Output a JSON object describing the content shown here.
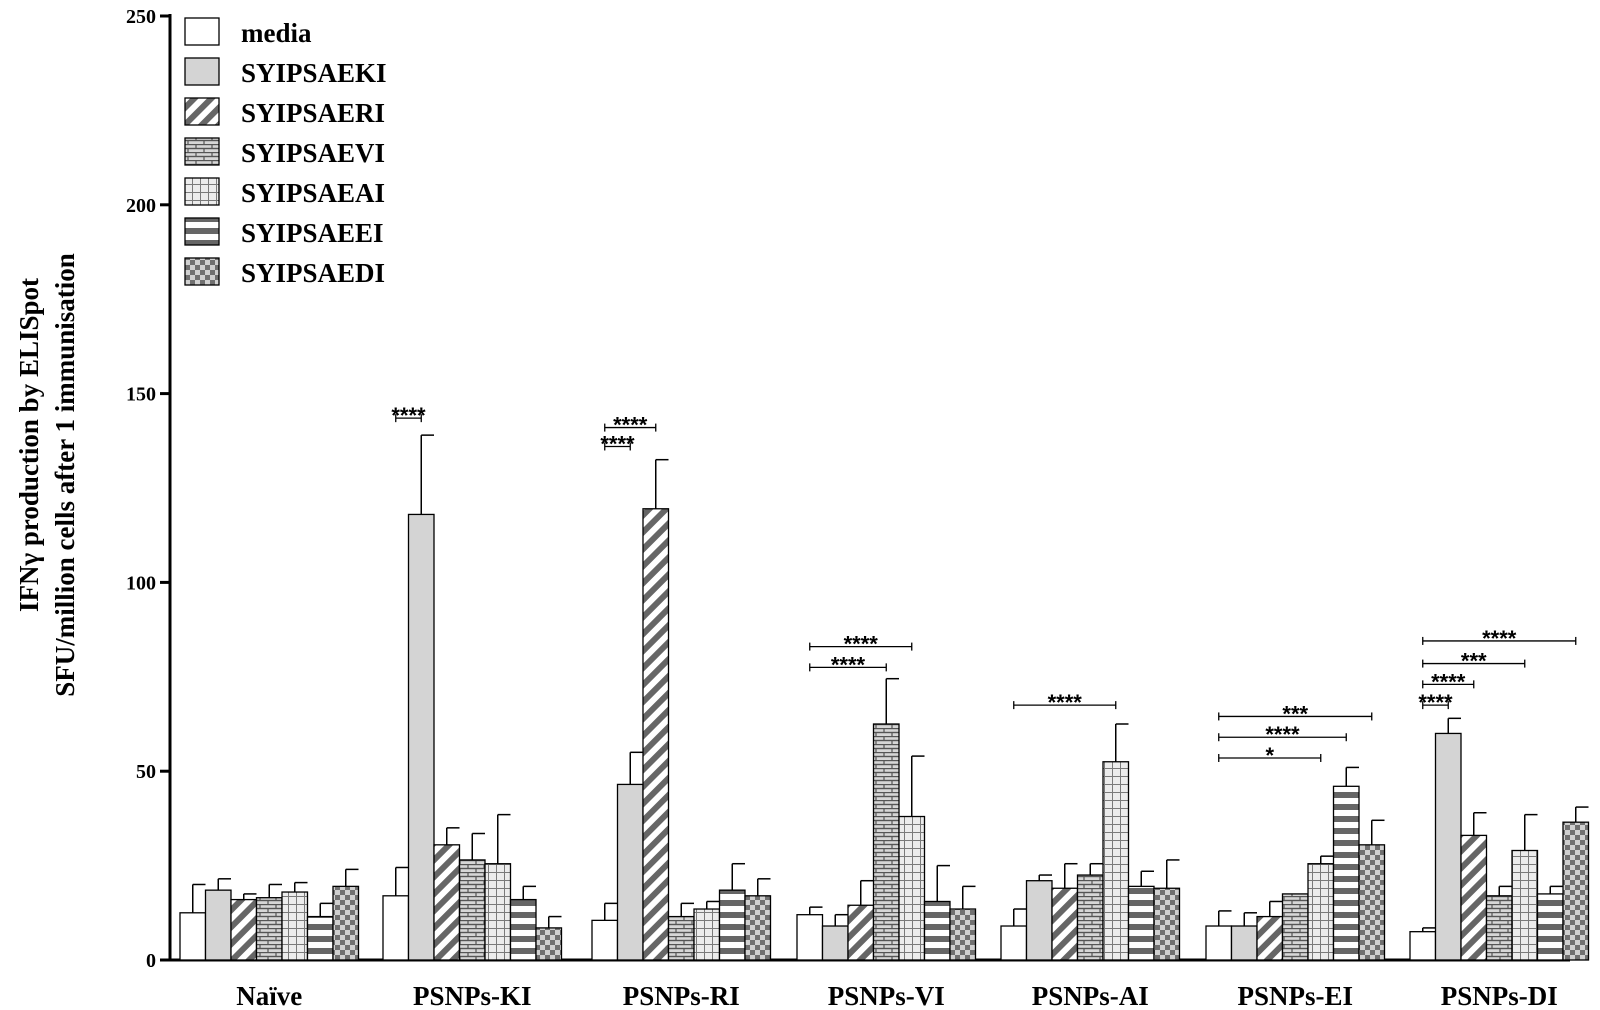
{
  "chart_data": {
    "type": "bar",
    "ylabel_line1": "IFNγ production by ELISpot",
    "ylabel_line2": "SFU/million cells after 1 immunisation",
    "ylim": [
      0,
      250
    ],
    "yticks": [
      "0",
      "50",
      "100",
      "150",
      "200",
      "250"
    ],
    "categories": [
      "Naïve",
      "PSNPs-KI",
      "PSNPs-RI",
      "PSNPs-VI",
      "PSNPs-AI",
      "PSNPs-EI",
      "PSNPs-DI"
    ],
    "legend_position": "top-left",
    "series": [
      {
        "name": "media",
        "pattern": "white",
        "values": [
          12.5,
          17,
          10.5,
          12,
          9,
          9,
          7.5
        ],
        "errors": [
          7.5,
          7.5,
          4.5,
          2,
          4.5,
          4,
          1
        ]
      },
      {
        "name": "SYIPSAEKI",
        "pattern": "gray",
        "values": [
          18.5,
          118,
          46.5,
          9,
          21,
          9,
          60
        ],
        "errors": [
          3,
          21,
          8.5,
          3,
          1.5,
          3.5,
          4
        ]
      },
      {
        "name": "SYIPSAERI",
        "pattern": "diag",
        "values": [
          16,
          30.5,
          119.5,
          14.5,
          19,
          11.5,
          33
        ],
        "errors": [
          1.5,
          4.5,
          13,
          6.5,
          6.5,
          4,
          6
        ]
      },
      {
        "name": "SYIPSAEVI",
        "pattern": "brick",
        "values": [
          16.5,
          26.5,
          11.5,
          62.5,
          22.5,
          17.5,
          17
        ],
        "errors": [
          3.5,
          7,
          3.5,
          12,
          3,
          0,
          2.5
        ]
      },
      {
        "name": "SYIPSAEAI",
        "pattern": "grid",
        "values": [
          18,
          25.5,
          13.5,
          38,
          52.5,
          25.5,
          29
        ],
        "errors": [
          2.5,
          13,
          2,
          16,
          10,
          2,
          9.5
        ]
      },
      {
        "name": "SYIPSAEEI",
        "pattern": "hstripe",
        "values": [
          11.5,
          16,
          18.5,
          15.5,
          19.5,
          46,
          17.5
        ],
        "errors": [
          3.5,
          3.5,
          7,
          9.5,
          4,
          5,
          2
        ]
      },
      {
        "name": "SYIPSAEDI",
        "pattern": "check",
        "values": [
          19.5,
          8.5,
          17,
          13.5,
          19,
          30.5,
          36.5
        ],
        "errors": [
          4.5,
          3,
          4.5,
          6,
          7.5,
          6.5,
          4
        ]
      }
    ],
    "significance": [
      {
        "group": 1,
        "from": 0,
        "to": 1,
        "level": 143.5,
        "label": "****"
      },
      {
        "group": 2,
        "from": 0,
        "to": 1,
        "level": 136,
        "label": "****"
      },
      {
        "group": 2,
        "from": 0,
        "to": 2,
        "level": 141,
        "label": "****"
      },
      {
        "group": 3,
        "from": 0,
        "to": 3,
        "level": 77.5,
        "label": "****"
      },
      {
        "group": 3,
        "from": 0,
        "to": 4,
        "level": 83,
        "label": "****"
      },
      {
        "group": 4,
        "from": 0,
        "to": 4,
        "level": 67.5,
        "label": "****"
      },
      {
        "group": 5,
        "from": 0,
        "to": 4,
        "level": 53.5,
        "label": "*"
      },
      {
        "group": 5,
        "from": 0,
        "to": 5,
        "level": 59,
        "label": "****"
      },
      {
        "group": 5,
        "from": 0,
        "to": 6,
        "level": 64.5,
        "label": "***"
      },
      {
        "group": 6,
        "from": 0,
        "to": 1,
        "level": 67.5,
        "label": "****"
      },
      {
        "group": 6,
        "from": 0,
        "to": 2,
        "level": 73,
        "label": "****"
      },
      {
        "group": 6,
        "from": 0,
        "to": 4,
        "level": 78.5,
        "label": "***"
      },
      {
        "group": 6,
        "from": 0,
        "to": 6,
        "level": 84.5,
        "label": "****"
      }
    ]
  }
}
